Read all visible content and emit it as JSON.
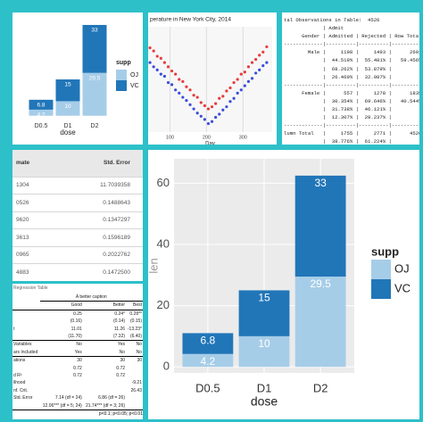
{
  "chart_data": [
    {
      "type": "bar",
      "stacked": true,
      "categories": [
        "D0.5",
        "D1",
        "D2"
      ],
      "series": [
        {
          "name": "OJ",
          "color": "#a6cde8",
          "values": [
            4.2,
            10,
            29.5
          ]
        },
        {
          "name": "VC",
          "color": "#2176b8",
          "values": [
            6.8,
            15,
            33
          ]
        }
      ],
      "xlabel": "dose",
      "legend_title": "supp",
      "ylim": [
        -2,
        68
      ],
      "grid": false
    },
    {
      "type": "scatter",
      "title": "perature in New York City, 2014",
      "xlabel": "Day",
      "x": [
        45,
        55,
        65,
        75,
        85,
        95,
        105,
        115,
        125,
        135,
        145,
        155,
        165,
        175,
        185,
        195,
        205,
        215,
        225,
        235,
        245,
        255,
        265,
        275,
        285,
        295,
        305,
        315,
        325,
        335,
        345,
        355,
        365
      ],
      "series": [
        {
          "color": "#e41a1c",
          "values": [
            80,
            77,
            72,
            70,
            66,
            62,
            58,
            55,
            50,
            48,
            43,
            40,
            35,
            33,
            28,
            25,
            22,
            24,
            27,
            32,
            34,
            39,
            42,
            47,
            50,
            55,
            57,
            62,
            66,
            69,
            73,
            76,
            81
          ]
        },
        {
          "color": "#1a2fd6",
          "values": [
            66,
            62,
            59,
            55,
            53,
            47,
            45,
            40,
            37,
            33,
            30,
            26,
            22,
            18,
            15,
            12,
            8,
            10,
            14,
            17,
            21,
            24,
            29,
            32,
            37,
            40,
            44,
            48,
            51,
            56,
            59,
            63,
            66
          ]
        }
      ],
      "xlim": [
        40,
        380
      ],
      "xticks": [
        100,
        200,
        300
      ],
      "ylim": [
        0,
        100
      ]
    },
    {
      "type": "bar",
      "stacked": true,
      "categories": [
        "D0.5",
        "D1",
        "D2"
      ],
      "series": [
        {
          "name": "OJ",
          "color": "#a6cde8",
          "values": [
            4.2,
            10,
            29.5
          ]
        },
        {
          "name": "VC",
          "color": "#2176b8",
          "values": [
            6.8,
            15,
            33
          ]
        }
      ],
      "xlabel": "dose",
      "ylabel": "len",
      "legend_title": "supp",
      "ylim": [
        -2,
        68
      ],
      "yticks": [
        0,
        20,
        40,
        60
      ],
      "grid": true
    }
  ],
  "crosstab": {
    "lines": [
      "tal Observations in Table:  4526",
      "             | Admit",
      "      Gender | Admitted | Rejected | Row Total",
      "-------------|----------|----------|----------",
      "        Male |     1198 |     1493 |      2691",
      "             |  44.519% |  55.481% |   59.456%",
      "             |  68.262% |  53.879% |",
      "             |  26.469% |  32.987% |",
      "-------------|----------|----------|----------",
      "      Female |      557 |     1278 |      1835",
      "             |  30.354% |  69.646% |   40.544%",
      "             |  31.738% |  46.121% |",
      "             |  12.307% |  28.237% |",
      "-------------|----------|----------|----------",
      "lumn Total   |     1755 |     2771 |      4526",
      "             |  38.776% |  61.224% |"
    ]
  },
  "estimates": {
    "header": [
      "mate",
      "Std. Error"
    ],
    "rows": [
      [
        "1304",
        "11.7039358"
      ],
      [
        "0526",
        "0.1488643"
      ],
      [
        "9620",
        "0.1347297"
      ],
      [
        "3613",
        "0.1596189"
      ],
      [
        "0965",
        "0.2022762"
      ],
      [
        "4883",
        "0.1472500"
      ]
    ]
  },
  "regression": {
    "title": "Regression Table",
    "caption": "A better caption",
    "header": [
      "",
      "Good",
      "Better",
      "Best"
    ],
    "rows": [
      [
        "",
        "0.25",
        "0.24*",
        "0.28**"
      ],
      [
        "",
        "(0.16)",
        "(0.14)",
        "(0.15)"
      ],
      [
        "t",
        "11.01",
        "11.26",
        "-13.23*"
      ],
      [
        "",
        "(11.70)",
        "(7.32)",
        "(6.40)"
      ],
      [
        "Variables",
        "No",
        "Yes",
        "No"
      ],
      [
        "ars Included",
        "Yes",
        "No",
        "No"
      ],
      [
        "ations",
        "30",
        "30",
        "30"
      ],
      [
        "",
        "0.72",
        "0.72",
        ""
      ],
      [
        "d R²",
        "0.72",
        "0.72",
        ""
      ],
      [
        "lihood",
        "",
        "",
        "-9.21"
      ],
      [
        "nf. Crit.",
        "",
        "",
        "26.43"
      ],
      [
        "Std. Error",
        "7.14 (df = 24)",
        "6.86 (df = 26)",
        ""
      ],
      [
        "",
        "12.06*** (df = 5; 24)",
        "21.74*** (df = 3; 26)",
        ""
      ]
    ],
    "note": "p<0.1; p<0.05; p<0.01"
  }
}
